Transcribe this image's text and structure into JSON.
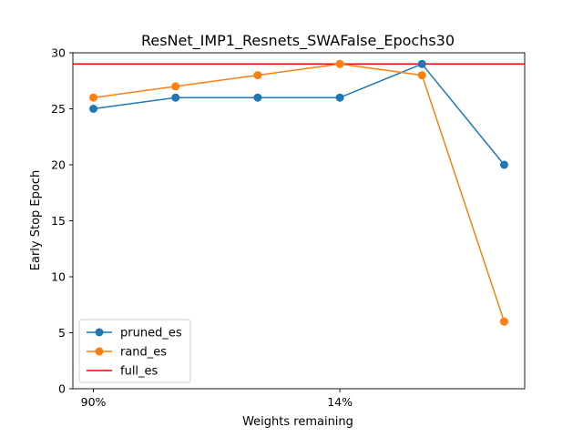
{
  "chart_data": {
    "type": "line",
    "title": "ResNet_IMP1_Resnets_SWAFalse_Epochs30",
    "xlabel": "Weights remaining",
    "ylabel": "Early Stop Epoch",
    "x": [
      0,
      1,
      2,
      3,
      4,
      5
    ],
    "xticks": [
      {
        "x": 0,
        "label": "90%"
      },
      {
        "x": 3,
        "label": "14%"
      }
    ],
    "xlim": [
      -0.25,
      5.25
    ],
    "ylim": [
      0,
      30
    ],
    "yticks": [
      0,
      5,
      10,
      15,
      20,
      25,
      30
    ],
    "grid": false,
    "legend_position": "lower-left",
    "series": [
      {
        "name": "pruned_es",
        "color": "#1f77b4",
        "marker": "circle",
        "values": [
          25,
          26,
          26,
          26,
          29,
          20
        ]
      },
      {
        "name": "rand_es",
        "color": "#ff7f0e",
        "marker": "circle",
        "values": [
          26,
          27,
          28,
          29,
          28,
          6
        ]
      }
    ],
    "hlines": [
      {
        "name": "full_es",
        "color": "#ff0000",
        "y": 29
      }
    ]
  }
}
